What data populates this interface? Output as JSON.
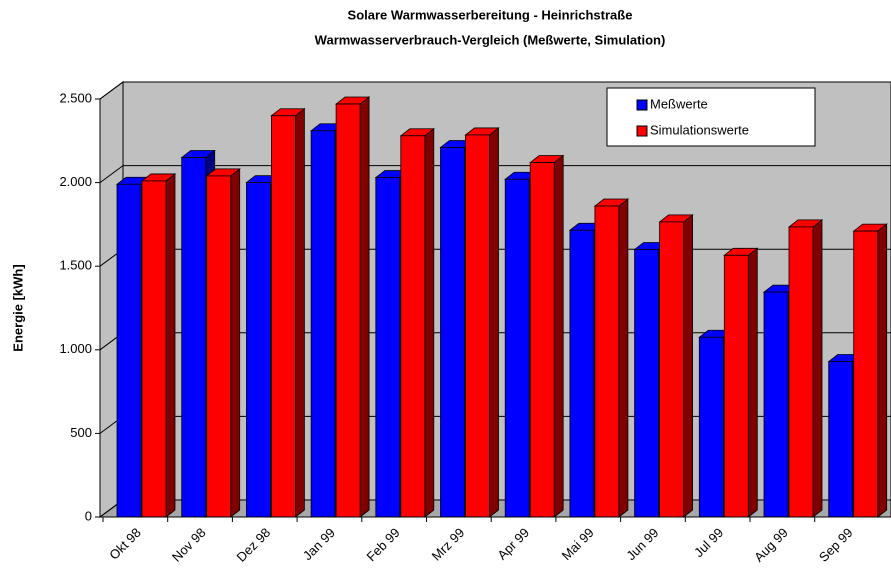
{
  "chart_data": {
    "type": "bar3d",
    "title": "Solare Warmwasserbereitung - Heinrichstraße",
    "subtitle": "Warmwasserverbrauch-Vergleich (Meßwerte, Simulation)",
    "y_label": "Energie [kWh]",
    "categories": [
      "Okt 98",
      "Nov 98",
      "Dez 98",
      "Jan 99",
      "Feb 99",
      "Mrz 99",
      "Apr 99",
      "Mai 99",
      "Jun 99",
      "Jul 99",
      "Aug 99",
      "Sep 99"
    ],
    "series": [
      {
        "name": "Meßwerte",
        "color": "#0000ff",
        "side": "#000080",
        "values": [
          1990,
          2150,
          2000,
          2310,
          2030,
          2210,
          2020,
          1715,
          1600,
          1075,
          1345,
          930
        ]
      },
      {
        "name": "Simulationswerte",
        "color": "#ff0000",
        "side": "#800000",
        "values": [
          2010,
          2040,
          2400,
          2470,
          2280,
          2285,
          2120,
          1860,
          1765,
          1565,
          1735,
          1710
        ]
      }
    ],
    "ylim": [
      0,
      2500
    ],
    "yticks": [
      0,
      {
        "value": 500,
        "label": "500"
      },
      {
        "value": 1000,
        "label": "1.000"
      },
      {
        "value": 1500,
        "label": "1.500"
      },
      {
        "value": 2000,
        "label": "2.000"
      },
      {
        "value": 2500,
        "label": "2.500"
      }
    ],
    "grid": true,
    "legend": "top-right"
  }
}
